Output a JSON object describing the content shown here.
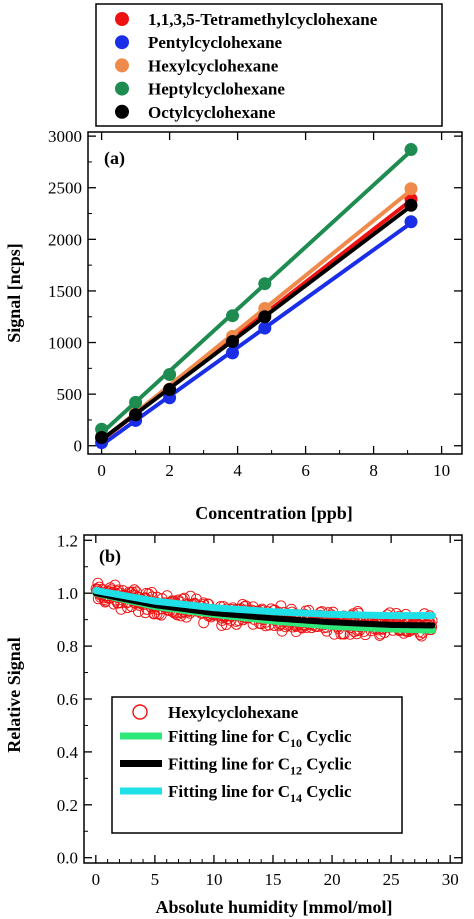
{
  "chart_data": [
    {
      "type": "scatter",
      "panel_label": "(a)",
      "xlabel": "Concentration [ppb]",
      "ylabel": "Signal [ncps]",
      "xlim": [
        -0.4,
        10.6
      ],
      "ylim": [
        -80,
        3040
      ],
      "xticks": [
        "0",
        "2",
        "4",
        "6",
        "8",
        "10"
      ],
      "yticks": [
        "0",
        "500",
        "1000",
        "1500",
        "2000",
        "2500",
        "3000"
      ],
      "legend_position": "top (above plot)",
      "grid": false,
      "series": [
        {
          "name": "1,1,3,5-Tetramethylcyclohexane",
          "color": "#ee1111",
          "x": [
            0,
            1,
            2,
            3.85,
            4.8,
            9.1
          ],
          "y": [
            75,
            310,
            540,
            1030,
            1270,
            2390
          ]
        },
        {
          "name": "Pentylcyclohexane",
          "color": "#1a2ee8",
          "x": [
            0,
            1,
            2,
            3.85,
            4.8,
            9.1
          ],
          "y": [
            30,
            245,
            465,
            900,
            1140,
            2170
          ]
        },
        {
          "name": "Hexylcyclohexane",
          "color": "#f08a4b",
          "x": [
            0,
            1,
            2,
            3.85,
            4.8,
            9.1
          ],
          "y": [
            90,
            320,
            550,
            1060,
            1330,
            2490
          ]
        },
        {
          "name": "Heptylcyclohexane",
          "color": "#1e8c50",
          "x": [
            0,
            1,
            2,
            3.85,
            4.8,
            9.1
          ],
          "y": [
            160,
            420,
            690,
            1260,
            1570,
            2870
          ]
        },
        {
          "name": "Octylcyclohexane",
          "color": "#000000",
          "x": [
            0,
            1,
            2,
            3.85,
            4.8,
            9.1
          ],
          "y": [
            80,
            300,
            545,
            1010,
            1250,
            2330
          ]
        }
      ]
    },
    {
      "type": "scatter",
      "panel_label": "(b)",
      "xlabel": "Absolute humidity [mmol/mol]",
      "ylabel": "Relative Signal",
      "xlim": [
        -1,
        31
      ],
      "ylim": [
        -0.02,
        1.22
      ],
      "xticks": [
        "0",
        "5",
        "10",
        "15",
        "20",
        "25",
        "30"
      ],
      "yticks": [
        "0.0",
        "0.2",
        "0.4",
        "0.6",
        "0.8",
        "1.0",
        "1.2"
      ],
      "legend_position": "bottom-center (inside)",
      "grid": false,
      "scatter_series": {
        "name": "Hexylcyclohexane",
        "color": "#ee1111",
        "x_range": [
          0,
          28.5
        ],
        "trend": {
          "x": [
            0,
            5,
            10,
            15,
            20,
            25,
            28.5
          ],
          "y": [
            1.0,
            0.96,
            0.93,
            0.91,
            0.89,
            0.88,
            0.88
          ]
        },
        "scatter_spread": 0.03
      },
      "fit_lines": [
        {
          "name_prefix": "Fitting line for C",
          "subscript": "10",
          "name_suffix": " Cyclic",
          "color": "#2ee87a",
          "x": [
            0,
            5,
            10,
            15,
            20,
            25,
            28.5
          ],
          "y": [
            1.0,
            0.95,
            0.92,
            0.895,
            0.875,
            0.865,
            0.86
          ]
        },
        {
          "name_prefix": "Fitting line for C",
          "subscript": "12",
          "name_suffix": " Cyclic",
          "color": "#000000",
          "x": [
            0,
            5,
            10,
            15,
            20,
            25,
            28.5
          ],
          "y": [
            1.0,
            0.955,
            0.925,
            0.905,
            0.89,
            0.88,
            0.878
          ]
        },
        {
          "name_prefix": "Fitting line for C",
          "subscript": "14",
          "name_suffix": " Cyclic",
          "color": "#1ee0e6",
          "x": [
            0,
            5,
            10,
            15,
            20,
            25,
            28.5
          ],
          "y": [
            1.01,
            0.97,
            0.945,
            0.93,
            0.92,
            0.915,
            0.915
          ]
        }
      ]
    }
  ]
}
